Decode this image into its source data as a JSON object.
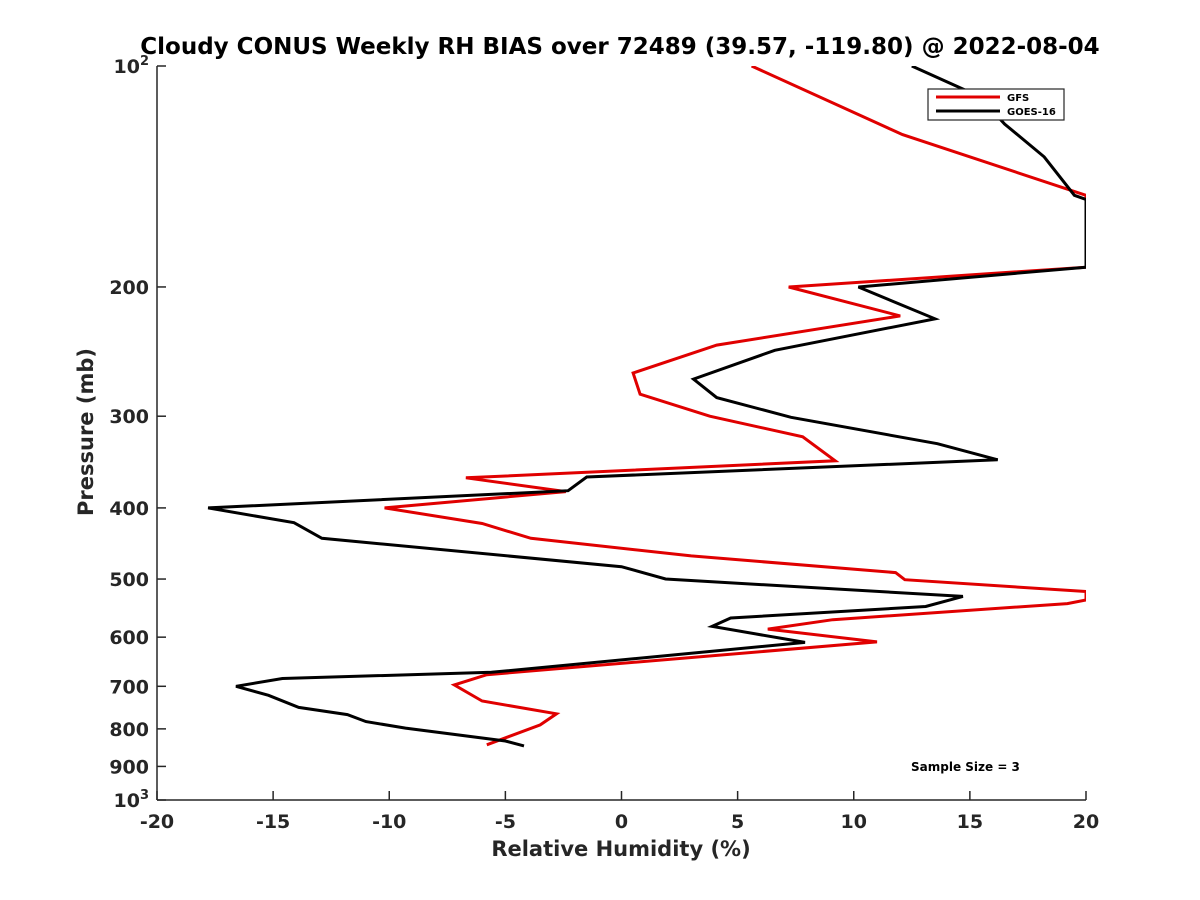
{
  "chart_data": {
    "type": "line",
    "title": "Cloudy CONUS Weekly RH BIAS over 72489 (39.57, -119.80) @ 2022-08-04",
    "xlabel": "Relative Humidity (%)",
    "ylabel": "Pressure (mb)",
    "xlim": [
      -20,
      20
    ],
    "ylim": [
      100,
      1000
    ],
    "y_scale": "log",
    "y_reversed": true,
    "grid": false,
    "legend_position": "top-right",
    "x_tick_labels": [
      "-20",
      "-15",
      "-10",
      "-5",
      "0",
      "5",
      "10",
      "15",
      "20"
    ],
    "y_tick_labels": [
      {
        "value": 100,
        "base": "10",
        "exp": "2"
      },
      {
        "value": 200,
        "base": "200",
        "exp": ""
      },
      {
        "value": 300,
        "base": "300",
        "exp": ""
      },
      {
        "value": 400,
        "base": "400",
        "exp": ""
      },
      {
        "value": 500,
        "base": "500",
        "exp": ""
      },
      {
        "value": 600,
        "base": "600",
        "exp": ""
      },
      {
        "value": 700,
        "base": "700",
        "exp": ""
      },
      {
        "value": 800,
        "base": "800",
        "exp": ""
      },
      {
        "value": 900,
        "base": "900",
        "exp": ""
      },
      {
        "value": 1000,
        "base": "10",
        "exp": "3"
      }
    ],
    "annotation": "Sample Size = 3",
    "series": [
      {
        "name": "GFS",
        "color": "#e00000",
        "points": [
          [
            5.6,
            100
          ],
          [
            12.1,
            124
          ],
          [
            20,
            150
          ],
          [
            20,
            188
          ],
          [
            7.2,
            200
          ],
          [
            12,
            219
          ],
          [
            4.1,
            240
          ],
          [
            0.5,
            262
          ],
          [
            0.8,
            280
          ],
          [
            3.8,
            300
          ],
          [
            7.8,
            320
          ],
          [
            9.2,
            345
          ],
          [
            -6.7,
            364
          ],
          [
            -2.4,
            380
          ],
          [
            -10.2,
            400
          ],
          [
            -6,
            420
          ],
          [
            -3.9,
            440
          ],
          [
            3,
            465
          ],
          [
            11.8,
            490
          ],
          [
            12.2,
            501
          ],
          [
            20,
            520
          ],
          [
            20,
            534
          ],
          [
            19.2,
            540
          ],
          [
            9.1,
            568
          ],
          [
            6.3,
            585
          ],
          [
            11,
            609
          ],
          [
            -5.8,
            675
          ],
          [
            -7.2,
            697
          ],
          [
            -6,
            733
          ],
          [
            -2.8,
            763
          ],
          [
            -3.5,
            790
          ],
          [
            -5.8,
            841
          ]
        ]
      },
      {
        "name": "GOES-16",
        "color": "#000000",
        "points": [
          [
            12.5,
            100
          ],
          [
            15.4,
            110
          ],
          [
            16.5,
            120
          ],
          [
            18.2,
            133
          ],
          [
            19.5,
            150
          ],
          [
            20,
            152
          ],
          [
            20,
            188
          ],
          [
            10.2,
            200
          ],
          [
            13.5,
            221
          ],
          [
            6.6,
            244
          ],
          [
            3.1,
            267
          ],
          [
            4.1,
            283
          ],
          [
            7.3,
            301
          ],
          [
            13.6,
            327
          ],
          [
            16.2,
            344
          ],
          [
            -1.5,
            363
          ],
          [
            -2.3,
            379
          ],
          [
            -17.8,
            400
          ],
          [
            -14.1,
            419
          ],
          [
            -12.9,
            440
          ],
          [
            0,
            481
          ],
          [
            1.9,
            500
          ],
          [
            14.7,
            528
          ],
          [
            13.1,
            545
          ],
          [
            4.7,
            565
          ],
          [
            3.9,
            580
          ],
          [
            7.9,
            610
          ],
          [
            -5.6,
            670
          ],
          [
            -14.6,
            683
          ],
          [
            -16.6,
            700
          ],
          [
            -15.2,
            720
          ],
          [
            -13.9,
            748
          ],
          [
            -11.8,
            765
          ],
          [
            -11,
            782
          ],
          [
            -9.3,
            798
          ],
          [
            -5,
            831
          ],
          [
            -4.2,
            844
          ]
        ]
      }
    ]
  }
}
